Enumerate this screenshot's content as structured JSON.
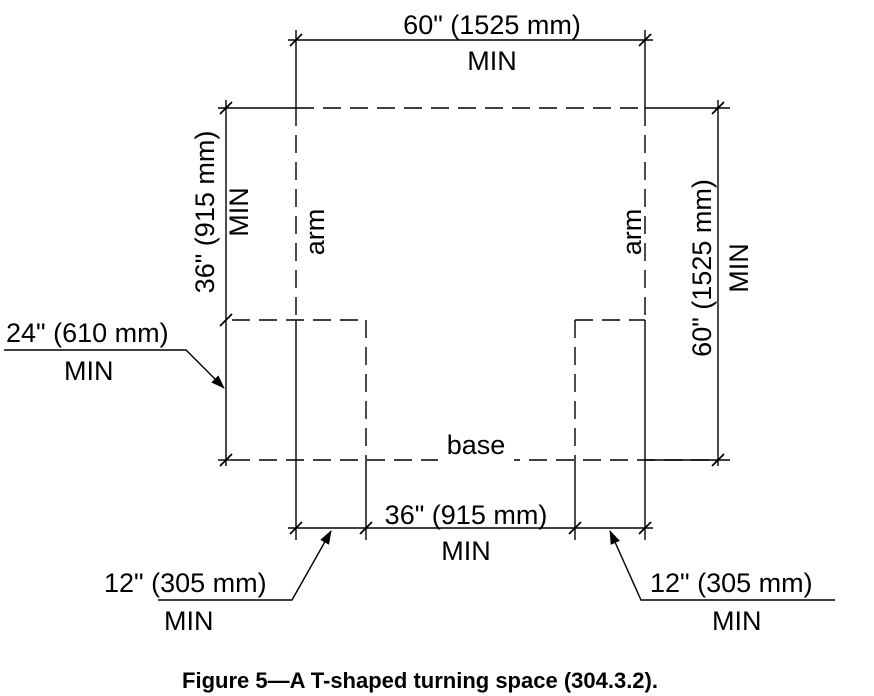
{
  "figure": {
    "caption": "Figure 5—A T-shaped turning space (304.3.2).",
    "labels": {
      "top_width": "60\" (1525 mm)",
      "top_width_min": "MIN",
      "left_arm_depth": "36\" (915 mm)",
      "left_arm_depth_min": "MIN",
      "arm_left": "arm",
      "arm_right": "arm",
      "right_height": "60\" (1525 mm)",
      "right_height_min": "MIN",
      "base_depth": "24\" (610 mm)",
      "base_depth_min": "MIN",
      "base": "base",
      "base_width": "36\" (915 mm)",
      "base_width_min": "MIN",
      "left_offset": "12\" (305 mm)",
      "left_offset_min": "MIN",
      "right_offset": "12\" (305 mm)",
      "right_offset_min": "MIN"
    }
  }
}
